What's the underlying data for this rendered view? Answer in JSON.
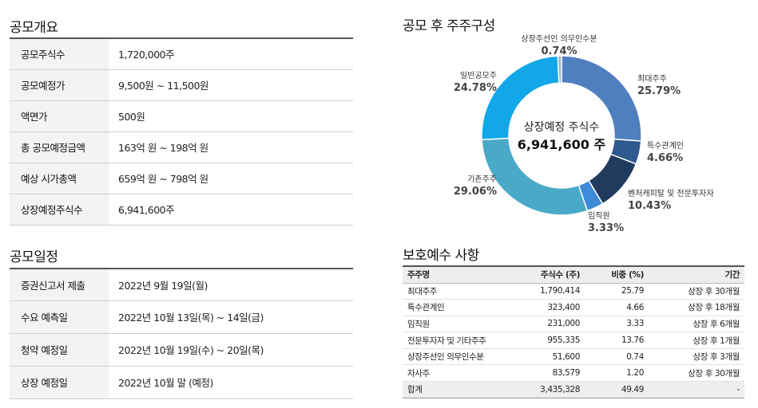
{
  "overview": {
    "title": "공모개요",
    "rows": [
      {
        "label": "공모주식수",
        "value": "1,720,000주"
      },
      {
        "label": "공모예정가",
        "value": "9,500원 ~ 11,500원"
      },
      {
        "label": "액면가",
        "value": "500원"
      },
      {
        "label": "총 공모예정금액",
        "value": "163억 원 ~ 198억 원"
      },
      {
        "label": "예상 시가총액",
        "value": "659억 원 ~ 798억 원"
      },
      {
        "label": "상장예정주식수",
        "value": "6,941,600주"
      }
    ]
  },
  "schedule": {
    "title": "공모일정",
    "rows": [
      {
        "label": "증권신고서 제출",
        "value": "2022년 9월 19일(월)"
      },
      {
        "label": "수요 예측일",
        "value": "2022년 10월 13일(목) ~ 14일(금)"
      },
      {
        "label": "청약 예정일",
        "value": "2022년 10월 19일(수) ~ 20일(목)"
      },
      {
        "label": "상장 예정일",
        "value": "2022년 10월 말 (예정)"
      }
    ]
  },
  "composition": {
    "title": "공모 후 주주구성",
    "center_line1": "상장예정 주식수",
    "center_line2": "6,941,600 주"
  },
  "chart_data": {
    "type": "pie",
    "variant": "donut",
    "start": "top",
    "slices": [
      {
        "name": "최대주주",
        "label": "25.79%",
        "value": 25.79,
        "color": "#4f7fbf"
      },
      {
        "name": "특수관계인",
        "label": "4.66%",
        "value": 4.66,
        "color": "#2f5a8f"
      },
      {
        "name": "벤처캐피탈 및 전문투자자",
        "label": "10.43%",
        "value": 10.43,
        "color": "#203b5e"
      },
      {
        "name": "임직원",
        "label": "3.33%",
        "value": 3.33,
        "color": "#3c8ad8"
      },
      {
        "name": "기존주주",
        "label": "29.06%",
        "value": 29.06,
        "color": "#4aa9c7"
      },
      {
        "name": "일반공모주",
        "label": "24.78%",
        "value": 24.78,
        "color": "#11a7e8"
      },
      {
        "name": "상장주선인 의무인수분",
        "label": "0.74%",
        "value": 0.74,
        "color": "#9bb3cf"
      }
    ]
  },
  "lockup": {
    "title": "보호예수 사항",
    "headers": [
      "주주명",
      "주식수 (주)",
      "비중 (%)",
      "기간"
    ],
    "rows": [
      [
        "최대주주",
        "1,790,414",
        "25.79",
        "상장 후 30개월"
      ],
      [
        "특수관계인",
        "323,400",
        "4.66",
        "상장 후 18개월"
      ],
      [
        "임직원",
        "231,000",
        "3.33",
        "상장 후 6개월"
      ],
      [
        "전문투자자 및 기타주주",
        "955,335",
        "13.76",
        "상장 후 1개월"
      ],
      [
        "상장주선인 의무인수분",
        "51,600",
        "0.74",
        "상장 후 3개월"
      ],
      [
        "자사주",
        "83,579",
        "1.20",
        "상장 후 30개월"
      ]
    ],
    "total": [
      "합계",
      "3,435,328",
      "49.49",
      "-"
    ]
  }
}
